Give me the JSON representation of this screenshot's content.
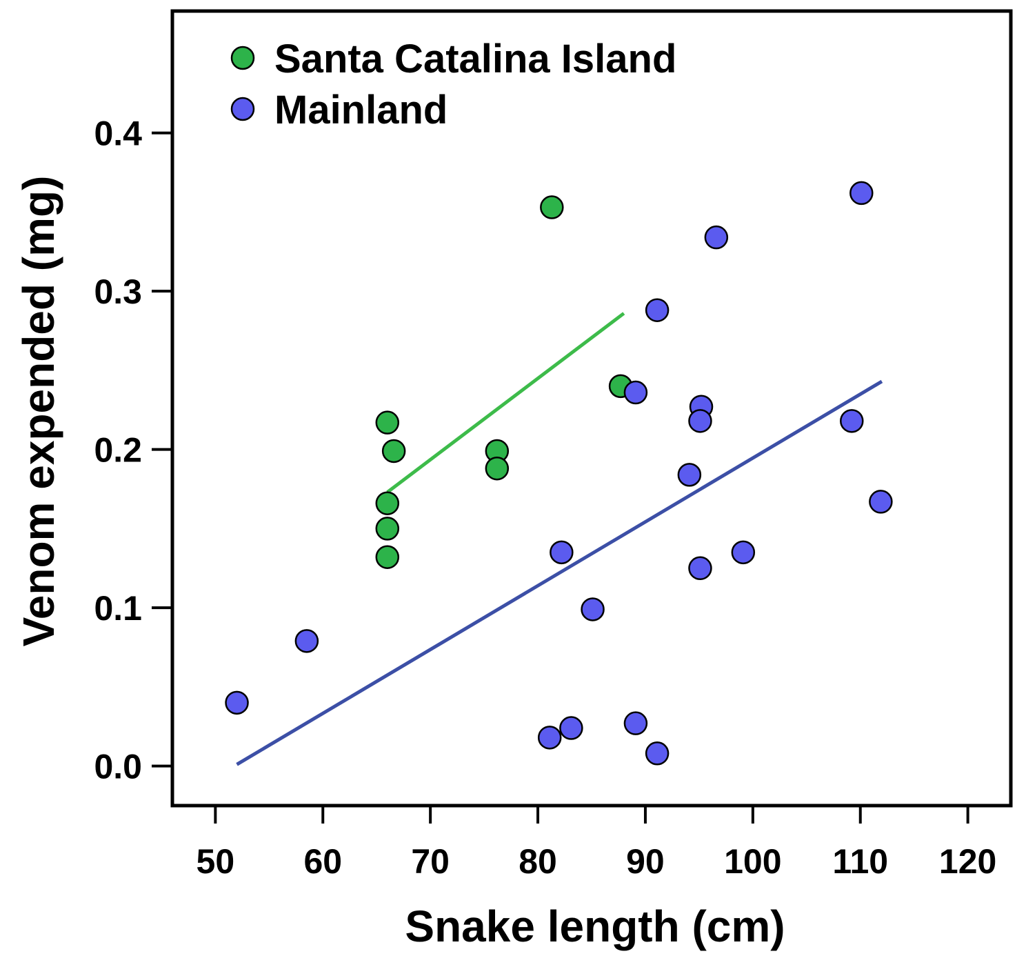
{
  "chart_data": {
    "type": "scatter",
    "xlabel": "Snake length (cm)",
    "ylabel": "Venom expended (mg)",
    "xlim": [
      46,
      124
    ],
    "ylim": [
      -0.025,
      0.477
    ],
    "xticks": [
      50,
      60,
      70,
      80,
      90,
      100,
      110,
      120
    ],
    "yticks": [
      0.0,
      0.1,
      0.2,
      0.3,
      0.4
    ],
    "ytick_labels": [
      "0.0",
      "0.1",
      "0.2",
      "0.3",
      "0.4"
    ],
    "legend_position": "top-left",
    "series": [
      {
        "name": "Santa Catalina Island",
        "color": "#2db34a",
        "line_color": "#3dbb4a",
        "points": [
          {
            "x": 66.0,
            "y": 0.217
          },
          {
            "x": 66.6,
            "y": 0.199
          },
          {
            "x": 66.0,
            "y": 0.166
          },
          {
            "x": 66.0,
            "y": 0.15
          },
          {
            "x": 66.0,
            "y": 0.132
          },
          {
            "x": 76.2,
            "y": 0.199
          },
          {
            "x": 76.2,
            "y": 0.188
          },
          {
            "x": 81.3,
            "y": 0.353
          },
          {
            "x": 87.7,
            "y": 0.24
          }
        ],
        "fit": {
          "x": [
            66.0,
            88.0
          ],
          "y": [
            0.173,
            0.286
          ]
        }
      },
      {
        "name": "Mainland",
        "color": "#5b5bef",
        "line_color": "#3c4fa6",
        "points": [
          {
            "x": 52.0,
            "y": 0.04
          },
          {
            "x": 58.5,
            "y": 0.079
          },
          {
            "x": 81.1,
            "y": 0.018
          },
          {
            "x": 82.2,
            "y": 0.135
          },
          {
            "x": 83.1,
            "y": 0.024
          },
          {
            "x": 85.1,
            "y": 0.099
          },
          {
            "x": 89.1,
            "y": 0.027
          },
          {
            "x": 89.1,
            "y": 0.236
          },
          {
            "x": 91.1,
            "y": 0.288
          },
          {
            "x": 91.1,
            "y": 0.008
          },
          {
            "x": 94.1,
            "y": 0.184
          },
          {
            "x": 95.2,
            "y": 0.227
          },
          {
            "x": 95.1,
            "y": 0.218
          },
          {
            "x": 95.1,
            "y": 0.125
          },
          {
            "x": 96.6,
            "y": 0.334
          },
          {
            "x": 99.1,
            "y": 0.135
          },
          {
            "x": 109.2,
            "y": 0.218
          },
          {
            "x": 110.1,
            "y": 0.362
          },
          {
            "x": 111.9,
            "y": 0.167
          }
        ],
        "fit": {
          "x": [
            52.0,
            112.0
          ],
          "y": [
            0.001,
            0.243
          ]
        }
      }
    ]
  }
}
